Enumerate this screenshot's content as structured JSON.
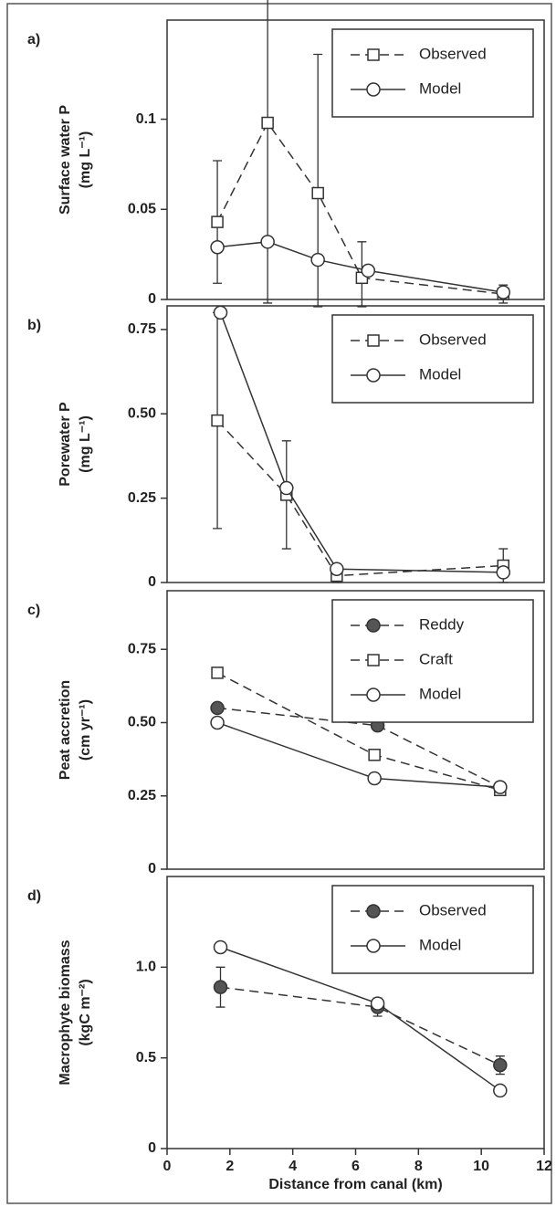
{
  "chart_data": [
    {
      "type": "line",
      "panel_label": "a)",
      "ylabel": [
        "Surface water P",
        "(mg L⁻¹)"
      ],
      "xlim": [
        0,
        12
      ],
      "ylim": [
        0,
        0.155
      ],
      "yticks": [
        0,
        0.05,
        0.1
      ],
      "legend": "upper right",
      "series": [
        {
          "name": "Observed",
          "color": "#333333",
          "dash": true,
          "marker": "square",
          "x": [
            1.6,
            3.2,
            4.8,
            6.2,
            10.7
          ],
          "values": [
            0.043,
            0.098,
            0.059,
            0.012,
            0.003
          ],
          "errors": [
            0.034,
            0.1,
            0.077,
            0.02,
            0.005
          ]
        },
        {
          "name": "Model",
          "color": "#333333",
          "dash": false,
          "marker": "circle-open",
          "x": [
            1.6,
            3.2,
            4.8,
            6.4,
            10.7
          ],
          "values": [
            0.029,
            0.032,
            0.022,
            0.016,
            0.004
          ]
        }
      ]
    },
    {
      "type": "line",
      "panel_label": "b)",
      "ylabel": [
        "Porewater  P",
        "(mg L⁻¹)"
      ],
      "xlim": [
        0,
        12
      ],
      "ylim": [
        0,
        0.82
      ],
      "yticks": [
        0,
        0.25,
        {
          "value": 0.5,
          "label": "0.50"
        },
        0.75
      ],
      "legend": "upper right",
      "series": [
        {
          "name": "Observed",
          "color": "#333333",
          "dash": true,
          "marker": "square",
          "x": [
            1.6,
            3.8,
            5.4,
            10.7
          ],
          "values": [
            0.48,
            0.26,
            0.02,
            0.05
          ],
          "errors": [
            0.32,
            0.16,
            0.02,
            0.05
          ]
        },
        {
          "name": "Model",
          "color": "#333333",
          "dash": false,
          "marker": "circle-open",
          "x": [
            1.7,
            3.8,
            5.4,
            10.7
          ],
          "values": [
            0.8,
            0.28,
            0.04,
            0.03
          ]
        }
      ]
    },
    {
      "type": "line",
      "panel_label": "c)",
      "ylabel": [
        "Peat accretion",
        "(cm yr⁻¹)"
      ],
      "xlim": [
        0,
        12
      ],
      "ylim": [
        0,
        0.95
      ],
      "yticks": [
        0,
        0.25,
        {
          "value": 0.5,
          "label": "0.50"
        },
        0.75
      ],
      "legend": "upper right",
      "series": [
        {
          "name": "Reddy",
          "color": "#333333",
          "dash": true,
          "marker": "circle-filled",
          "x": [
            1.6,
            6.7,
            10.6
          ],
          "values": [
            0.55,
            0.49,
            0.28
          ]
        },
        {
          "name": "Craft",
          "color": "#333333",
          "dash": true,
          "marker": "square",
          "x": [
            1.6,
            6.6,
            10.6
          ],
          "values": [
            0.67,
            0.39,
            0.27
          ]
        },
        {
          "name": "Model",
          "color": "#333333",
          "dash": false,
          "marker": "circle-open",
          "x": [
            1.6,
            6.6,
            10.6
          ],
          "values": [
            0.5,
            0.31,
            0.28
          ]
        }
      ]
    },
    {
      "type": "line",
      "panel_label": "d)",
      "ylabel": [
        "Macrophyte biomass",
        "(kgC  m⁻²)"
      ],
      "xlim": [
        0,
        12
      ],
      "ylim": [
        0,
        1.5
      ],
      "yticks": [
        0,
        0.5,
        {
          "value": 1,
          "label": "1.0"
        }
      ],
      "legend": "upper right",
      "xticks": [
        0,
        2,
        4,
        6,
        8,
        10,
        12
      ],
      "xlabel": "Distance from canal (km)",
      "series": [
        {
          "name": "Observed",
          "color": "#333333",
          "dash": true,
          "marker": "circle-filled",
          "x": [
            1.7,
            6.7,
            10.6
          ],
          "values": [
            0.89,
            0.78,
            0.46
          ],
          "errors": [
            0.11,
            0.05,
            0.05
          ]
        },
        {
          "name": "Model",
          "color": "#333333",
          "dash": false,
          "marker": "circle-open",
          "x": [
            1.7,
            6.7,
            10.6
          ],
          "values": [
            1.11,
            0.8,
            0.32
          ]
        }
      ]
    }
  ]
}
